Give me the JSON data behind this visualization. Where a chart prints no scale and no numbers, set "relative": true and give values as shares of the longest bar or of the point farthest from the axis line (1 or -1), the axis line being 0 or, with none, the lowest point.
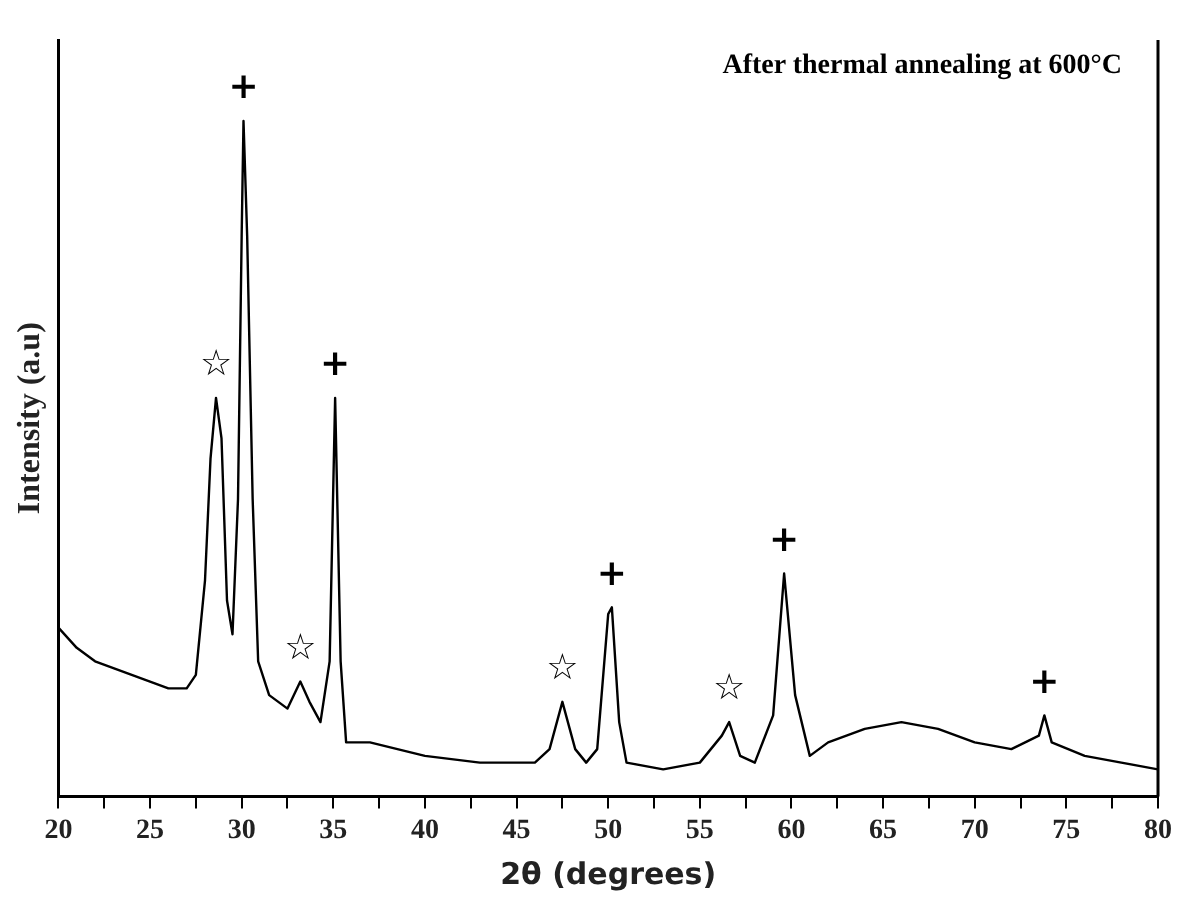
{
  "chart_data": {
    "type": "line",
    "relative": true,
    "xlabel": "2θ (degrees)",
    "ylabel": "Intensity (a.u)",
    "xlim": [
      20,
      80
    ],
    "xticks": [
      20,
      {
        "value": 22.5,
        "label": null
      },
      25,
      {
        "value": 27.5,
        "label": null
      },
      30,
      {
        "value": 32.5,
        "label": null
      },
      35,
      {
        "value": 37.5,
        "label": null
      },
      40,
      {
        "value": 42.5,
        "label": null
      },
      45,
      {
        "value": 47.5,
        "label": null
      },
      50,
      {
        "value": 52.5,
        "label": null
      },
      55,
      {
        "value": 57.5,
        "label": null
      },
      60,
      {
        "value": 62.5,
        "label": null
      },
      65,
      {
        "value": 67.5,
        "label": null
      },
      70,
      {
        "value": 72.5,
        "label": null
      },
      75,
      {
        "value": 77.5,
        "label": null
      },
      80
    ],
    "grid": false,
    "legend": false,
    "marker": "none",
    "line_style": "solid",
    "x": [
      20,
      21,
      22,
      23,
      24,
      25,
      26,
      27,
      27.5,
      28,
      28.3,
      28.6,
      28.9,
      29.2,
      29.5,
      29.8,
      30.0,
      30.1,
      30.3,
      30.6,
      30.9,
      31.5,
      32.5,
      33.2,
      33.7,
      34.3,
      34.8,
      35.1,
      35.4,
      35.7,
      37,
      40,
      43,
      46,
      46.8,
      47.5,
      48.2,
      48.8,
      49.4,
      50.0,
      50.2,
      50.6,
      51,
      53,
      55,
      56.2,
      56.6,
      57.2,
      58,
      59,
      59.6,
      60.2,
      61,
      62,
      64,
      66,
      68,
      70,
      72,
      73.5,
      73.8,
      74.2,
      76,
      78,
      80
    ],
    "series": [
      {
        "color": "#000000",
        "values": [
          0.25,
          0.22,
          0.2,
          0.19,
          0.18,
          0.17,
          0.16,
          0.16,
          0.18,
          0.32,
          0.5,
          0.59,
          0.53,
          0.29,
          0.24,
          0.44,
          0.83,
          1.0,
          0.83,
          0.44,
          0.2,
          0.15,
          0.13,
          0.17,
          0.14,
          0.11,
          0.2,
          0.59,
          0.2,
          0.08,
          0.08,
          0.06,
          0.05,
          0.05,
          0.07,
          0.14,
          0.07,
          0.05,
          0.07,
          0.27,
          0.28,
          0.11,
          0.05,
          0.04,
          0.05,
          0.09,
          0.11,
          0.06,
          0.05,
          0.12,
          0.33,
          0.15,
          0.06,
          0.08,
          0.1,
          0.11,
          0.1,
          0.08,
          0.07,
          0.09,
          0.12,
          0.08,
          0.06,
          0.05,
          0.04
        ]
      }
    ],
    "annotations": [
      "After thermal annealing at 600°C",
      {
        "text": "+",
        "x": 30.1,
        "y": 1.0
      },
      {
        "text": "+",
        "x": 35.1,
        "y": 0.59
      },
      {
        "text": "+",
        "x": 50.2,
        "y": 0.28
      },
      {
        "text": "+",
        "x": 59.6,
        "y": 0.33
      },
      {
        "text": "+",
        "x": 73.8,
        "y": 0.12
      },
      {
        "text": "☆",
        "x": 28.6,
        "y": 0.59
      },
      {
        "text": "☆",
        "x": 33.2,
        "y": 0.17
      },
      {
        "text": "☆",
        "x": 47.5,
        "y": 0.14
      },
      {
        "text": "☆",
        "x": 56.6,
        "y": 0.11
      }
    ]
  }
}
